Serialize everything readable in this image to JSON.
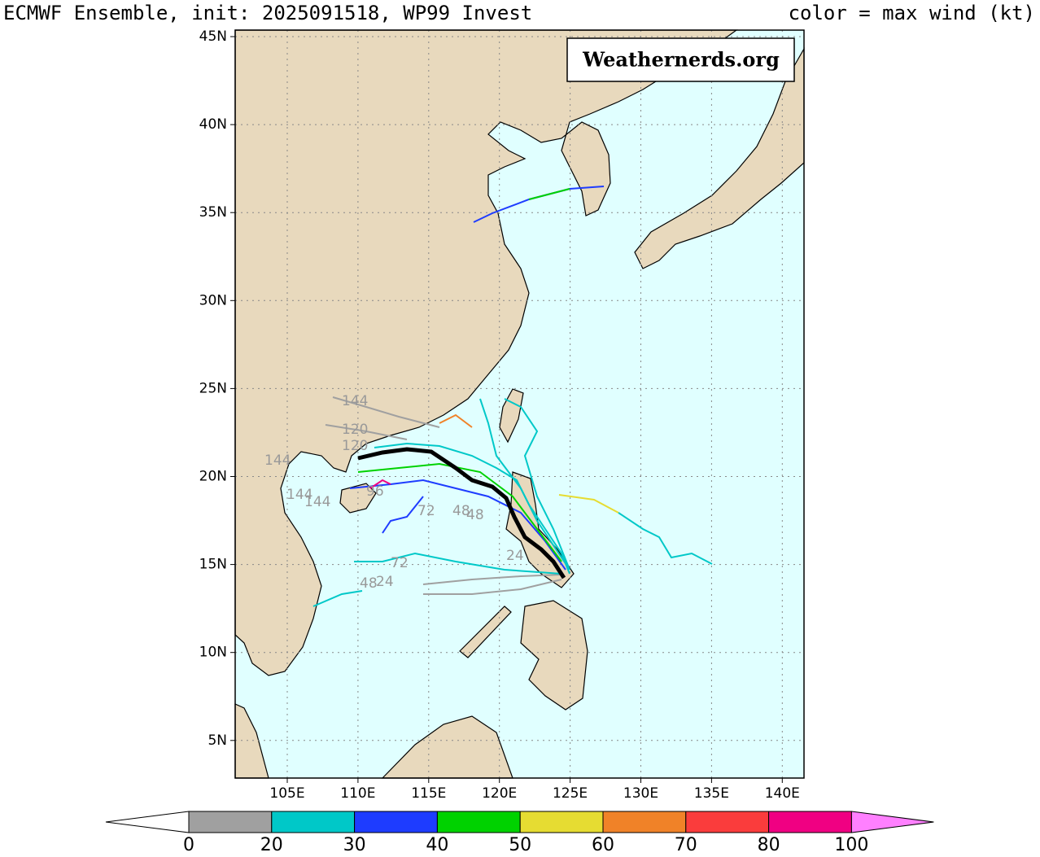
{
  "header": {
    "title": "ECMWF Ensemble, init: 2025091518, WP99 Invest",
    "color_note": "color = max wind (kt)"
  },
  "watermark": "Weathernerds.org",
  "lat_labels": [
    "45N",
    "40N",
    "35N",
    "30N",
    "25N",
    "20N",
    "15N",
    "10N",
    "5N"
  ],
  "lon_labels": [
    "105E",
    "110E",
    "115E",
    "120E",
    "125E",
    "130E",
    "135E",
    "140E"
  ],
  "track_labels": [
    "144",
    "120",
    "120",
    "144",
    "144",
    "144",
    "96",
    "72",
    "48",
    "48",
    "48",
    "24",
    "72",
    "24"
  ],
  "colorbar": {
    "ticks": [
      0,
      20,
      30,
      40,
      50,
      60,
      70,
      80,
      100
    ],
    "colors": [
      "#a0a0a0",
      "#00c8c8",
      "#1e3cff",
      "#00d200",
      "#e6dc32",
      "#f08228",
      "#fa3c3c",
      "#f00082"
    ],
    "over_color": "#ff80ff",
    "under_color": "#ffffff"
  }
}
